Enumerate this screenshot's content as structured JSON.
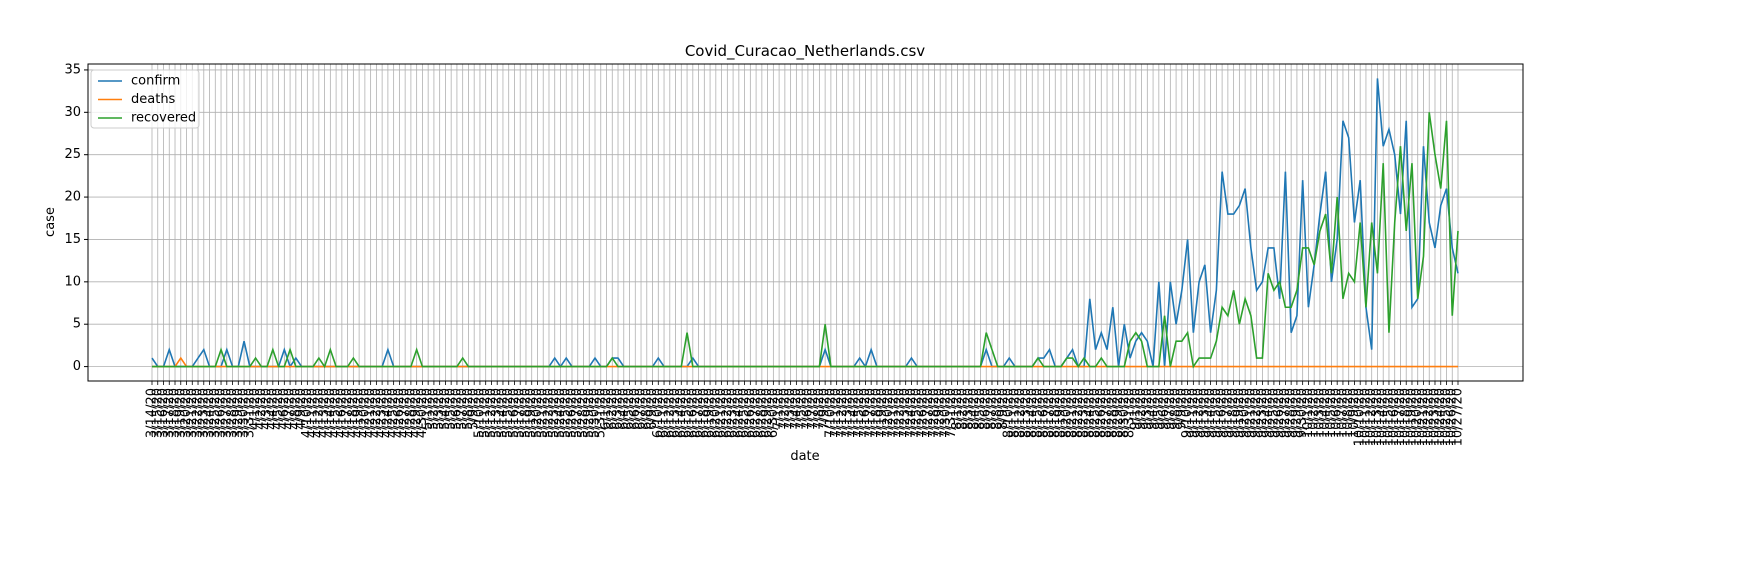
{
  "chart_data": {
    "type": "line",
    "title": "Covid_Curacao_Netherlands.csv",
    "xlabel": "date",
    "ylabel": "case",
    "categories": [
      "3/14/20",
      "3/15/20",
      "3/16/20",
      "3/17/20",
      "3/18/20",
      "3/19/20",
      "3/20/20",
      "3/21/20",
      "3/22/20",
      "3/23/20",
      "3/24/20",
      "3/25/20",
      "3/26/20",
      "3/27/20",
      "3/28/20",
      "3/29/20",
      "3/30/20",
      "3/31/20",
      "4/1/20",
      "4/2/20",
      "4/3/20",
      "4/4/20",
      "4/5/20",
      "4/6/20",
      "4/7/20",
      "4/8/20",
      "4/9/20",
      "4/10/20",
      "4/11/20",
      "4/12/20",
      "4/13/20",
      "4/14/20",
      "4/15/20",
      "4/16/20",
      "4/17/20",
      "4/18/20",
      "4/19/20",
      "4/20/20",
      "4/21/20",
      "4/22/20",
      "4/23/20",
      "4/24/20",
      "4/25/20",
      "4/26/20",
      "4/27/20",
      "4/28/20",
      "4/29/20",
      "4/30/20",
      "5/1/20",
      "5/2/20",
      "5/3/20",
      "5/4/20",
      "5/5/20",
      "5/6/20",
      "5/7/20",
      "5/8/20",
      "5/9/20",
      "5/10/20",
      "5/11/20",
      "5/12/20",
      "5/13/20",
      "5/14/20",
      "5/15/20",
      "5/16/20",
      "5/17/20",
      "5/18/20",
      "5/19/20",
      "5/20/20",
      "5/21/20",
      "5/22/20",
      "5/23/20",
      "5/24/20",
      "5/25/20",
      "5/26/20",
      "5/27/20",
      "5/28/20",
      "5/29/20",
      "5/30/20",
      "5/31/20",
      "6/1/20",
      "6/2/20",
      "6/3/20",
      "6/4/20",
      "6/5/20",
      "6/6/20",
      "6/7/20",
      "6/8/20",
      "6/9/20",
      "6/10/20",
      "6/11/20",
      "6/12/20",
      "6/13/20",
      "6/14/20",
      "6/15/20",
      "6/16/20",
      "6/17/20",
      "6/18/20",
      "6/19/20",
      "6/20/20",
      "6/21/20",
      "6/22/20",
      "6/23/20",
      "6/24/20",
      "6/25/20",
      "6/26/20",
      "6/27/20",
      "6/28/20",
      "6/29/20",
      "6/30/20",
      "7/1/20",
      "7/2/20",
      "7/3/20",
      "7/4/20",
      "7/5/20",
      "7/6/20",
      "7/7/20",
      "7/8/20",
      "7/9/20",
      "7/10/20",
      "7/11/20",
      "7/12/20",
      "7/13/20",
      "7/14/20",
      "7/15/20",
      "7/16/20",
      "7/17/20",
      "7/18/20",
      "7/19/20",
      "7/20/20",
      "7/21/20",
      "7/22/20",
      "7/23/20",
      "7/24/20",
      "7/25/20",
      "7/26/20",
      "7/27/20",
      "7/28/20",
      "7/29/20",
      "7/30/20",
      "7/31/20",
      "8/1/20",
      "8/2/20",
      "8/3/20",
      "8/4/20",
      "8/5/20",
      "8/6/20",
      "8/7/20",
      "8/8/20",
      "8/9/20",
      "8/10/20",
      "8/11/20",
      "8/12/20",
      "8/13/20",
      "8/14/20",
      "8/15/20",
      "8/16/20",
      "8/17/20",
      "8/18/20",
      "8/19/20",
      "8/20/20",
      "8/21/20",
      "8/22/20",
      "8/23/20",
      "8/24/20",
      "8/25/20",
      "8/26/20",
      "8/27/20",
      "8/28/20",
      "8/29/20",
      "8/30/20",
      "8/31/20",
      "9/1/20",
      "9/2/20",
      "9/3/20",
      "9/4/20",
      "9/5/20",
      "9/6/20",
      "9/7/20",
      "9/8/20",
      "9/9/20",
      "9/10/20",
      "9/11/20",
      "9/12/20",
      "9/13/20",
      "9/14/20",
      "9/15/20",
      "9/16/20",
      "9/17/20",
      "9/18/20",
      "9/19/20",
      "9/20/20",
      "9/21/20",
      "9/22/20",
      "9/23/20",
      "9/24/20",
      "9/25/20",
      "9/26/20",
      "9/27/20",
      "9/28/20",
      "9/29/20",
      "9/30/20",
      "10/1/20",
      "10/2/20",
      "10/3/20",
      "10/4/20",
      "10/5/20",
      "10/6/20",
      "10/7/20",
      "10/8/20",
      "10/9/20",
      "10/10/20",
      "10/11/20",
      "10/12/20",
      "10/13/20",
      "10/14/20",
      "10/15/20",
      "10/16/20",
      "10/17/20",
      "10/18/20",
      "10/19/20",
      "10/20/20",
      "10/21/20",
      "10/22/20",
      "10/23/20",
      "10/24/20",
      "10/25/20",
      "10/26/20",
      "10/27/20"
    ],
    "series": [
      {
        "name": "confirm",
        "color": "#1f77b4",
        "values": [
          1,
          0,
          0,
          2,
          0,
          0,
          0,
          0,
          1,
          2,
          0,
          0,
          0,
          2,
          0,
          0,
          3,
          0,
          0,
          0,
          0,
          0,
          0,
          2,
          0,
          1,
          0,
          0,
          0,
          0,
          0,
          0,
          0,
          0,
          0,
          0,
          0,
          0,
          0,
          0,
          0,
          2,
          0,
          0,
          0,
          0,
          0,
          0,
          0,
          0,
          0,
          0,
          0,
          0,
          0,
          0,
          0,
          0,
          0,
          0,
          0,
          0,
          0,
          0,
          0,
          0,
          0,
          0,
          0,
          0,
          1,
          0,
          1,
          0,
          0,
          0,
          0,
          1,
          0,
          0,
          1,
          1,
          0,
          0,
          0,
          0,
          0,
          0,
          1,
          0,
          0,
          0,
          0,
          0,
          1,
          0,
          0,
          0,
          0,
          0,
          0,
          0,
          0,
          0,
          0,
          0,
          0,
          0,
          0,
          0,
          0,
          0,
          0,
          0,
          0,
          0,
          0,
          2,
          0,
          0,
          0,
          0,
          0,
          1,
          0,
          2,
          0,
          0,
          0,
          0,
          0,
          0,
          1,
          0,
          0,
          0,
          0,
          0,
          0,
          0,
          0,
          0,
          0,
          0,
          0,
          2,
          0,
          0,
          0,
          1,
          0,
          0,
          0,
          0,
          1,
          1,
          2,
          0,
          0,
          1,
          2,
          0,
          0,
          8,
          2,
          4,
          2,
          7,
          0,
          5,
          1,
          3,
          4,
          3,
          0,
          10,
          0,
          10,
          5,
          9,
          15,
          4,
          10,
          12,
          4,
          9,
          23,
          18,
          18,
          19,
          21,
          14,
          9,
          10,
          14,
          14,
          8,
          23,
          4,
          6,
          22,
          7,
          12,
          18,
          23,
          10,
          15,
          29,
          27,
          17,
          22,
          7,
          2,
          34,
          26,
          28,
          25,
          18,
          29,
          7,
          8,
          26,
          17,
          14,
          19,
          21,
          14,
          11
        ]
      },
      {
        "name": "deaths",
        "color": "#ff7f0e",
        "values": [
          0,
          0,
          0,
          0,
          0,
          1,
          0,
          0,
          0,
          0,
          0,
          0,
          0,
          0,
          0,
          0,
          0,
          0,
          0,
          0,
          0,
          0,
          0,
          0,
          0,
          0,
          0,
          0,
          0,
          0,
          0,
          0,
          0,
          0,
          0,
          0,
          0,
          0,
          0,
          0,
          0,
          0,
          0,
          0,
          0,
          0,
          0,
          0,
          0,
          0,
          0,
          0,
          0,
          0,
          0,
          0,
          0,
          0,
          0,
          0,
          0,
          0,
          0,
          0,
          0,
          0,
          0,
          0,
          0,
          0,
          0,
          0,
          0,
          0,
          0,
          0,
          0,
          0,
          0,
          0,
          0,
          0,
          0,
          0,
          0,
          0,
          0,
          0,
          0,
          0,
          0,
          0,
          0,
          0,
          0,
          0,
          0,
          0,
          0,
          0,
          0,
          0,
          0,
          0,
          0,
          0,
          0,
          0,
          0,
          0,
          0,
          0,
          0,
          0,
          0,
          0,
          0,
          0,
          0,
          0,
          0,
          0,
          0,
          0,
          0,
          0,
          0,
          0,
          0,
          0,
          0,
          0,
          0,
          0,
          0,
          0,
          0,
          0,
          0,
          0,
          0,
          0,
          0,
          0,
          0,
          0,
          0,
          0,
          0,
          0,
          0,
          0,
          0,
          0,
          0,
          0,
          0,
          0,
          0,
          0,
          0,
          0,
          0,
          0,
          0,
          0,
          0,
          0,
          0,
          0,
          0,
          0,
          0,
          0,
          0,
          0,
          0,
          0,
          0,
          0,
          0,
          0,
          0,
          0,
          0,
          0,
          0,
          0,
          0,
          0,
          0,
          0,
          0,
          0,
          0,
          0,
          0,
          0,
          0,
          0,
          0,
          0,
          0,
          0,
          0,
          0,
          0,
          0,
          0,
          0,
          0,
          0,
          0,
          0,
          0,
          0,
          0,
          0,
          0,
          0,
          0,
          0,
          0,
          0,
          0,
          0,
          0,
          0
        ]
      },
      {
        "name": "recovered",
        "color": "#2ca02c",
        "values": [
          0,
          0,
          0,
          0,
          0,
          0,
          0,
          0,
          0,
          0,
          0,
          0,
          2,
          0,
          0,
          0,
          0,
          0,
          1,
          0,
          0,
          2,
          0,
          0,
          2,
          0,
          0,
          0,
          0,
          1,
          0,
          2,
          0,
          0,
          0,
          1,
          0,
          0,
          0,
          0,
          0,
          0,
          0,
          0,
          0,
          0,
          2,
          0,
          0,
          0,
          0,
          0,
          0,
          0,
          1,
          0,
          0,
          0,
          0,
          0,
          0,
          0,
          0,
          0,
          0,
          0,
          0,
          0,
          0,
          0,
          0,
          0,
          0,
          0,
          0,
          0,
          0,
          0,
          0,
          0,
          1,
          0,
          0,
          0,
          0,
          0,
          0,
          0,
          0,
          0,
          0,
          0,
          0,
          4,
          0,
          0,
          0,
          0,
          0,
          0,
          0,
          0,
          0,
          0,
          0,
          0,
          0,
          0,
          0,
          0,
          0,
          0,
          0,
          0,
          0,
          0,
          0,
          5,
          0,
          0,
          0,
          0,
          0,
          0,
          0,
          0,
          0,
          0,
          0,
          0,
          0,
          0,
          0,
          0,
          0,
          0,
          0,
          0,
          0,
          0,
          0,
          0,
          0,
          0,
          0,
          4,
          2,
          0,
          0,
          0,
          0,
          0,
          0,
          0,
          1,
          0,
          0,
          0,
          0,
          1,
          1,
          0,
          1,
          0,
          0,
          1,
          0,
          0,
          0,
          0,
          3,
          4,
          3,
          0,
          0,
          0,
          6,
          0,
          3,
          3,
          4,
          0,
          1,
          1,
          1,
          3,
          7,
          6,
          9,
          5,
          8,
          6,
          1,
          1,
          11,
          9,
          10,
          7,
          7,
          9,
          14,
          14,
          12,
          16,
          18,
          11,
          20,
          8,
          11,
          10,
          17,
          7,
          17,
          11,
          24,
          4,
          17,
          26,
          16,
          24,
          8,
          13,
          30,
          25,
          21,
          29,
          6,
          16
        ]
      }
    ],
    "ylim": [
      -1.7,
      35.7
    ],
    "yticks": [
      0,
      5,
      10,
      15,
      20,
      25,
      30,
      35
    ],
    "grid": true,
    "legend": "upper left"
  }
}
